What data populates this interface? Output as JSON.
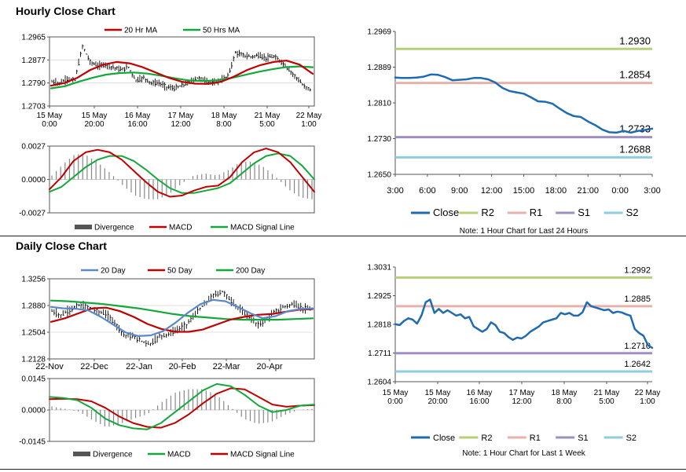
{
  "sections": {
    "hourly_title": "Hourly Close Chart",
    "daily_title": "Daily Close Chart"
  },
  "colors": {
    "close": "#1f6bb0",
    "r2": "#b6d07a",
    "r1": "#e7b2ae",
    "s1": "#9e8fc0",
    "s2": "#8ccde0",
    "ma_red": "#c00000",
    "ma_green": "#13a83b",
    "ma_blue": "#5a88c8",
    "bars": "#000000",
    "divergence": "#888888"
  },
  "chart_data": [
    {
      "id": "hourly-price",
      "type": "ohlc",
      "title": "Hourly Close Chart",
      "legend": [
        "20 Hr MA",
        "50 Hrs MA"
      ],
      "y_ticks": [
        "1.2965",
        "1.2877",
        "1.2790",
        "1.2703"
      ],
      "ylim": [
        1.2703,
        1.2965
      ],
      "x_ticks": [
        [
          "15 May",
          "0:00"
        ],
        [
          "15 May",
          "20:00"
        ],
        [
          "16 May",
          "16:00"
        ],
        [
          "17 May",
          "12:00"
        ],
        [
          "18 May",
          "8:00"
        ],
        [
          "21 May",
          "5:00"
        ],
        [
          "22 May",
          "1:00"
        ]
      ],
      "close": [
        1.2795,
        1.279,
        1.2805,
        1.28,
        1.293,
        1.287,
        1.2855,
        1.286,
        1.285,
        1.284,
        1.285,
        1.28,
        1.281,
        1.279,
        1.279,
        1.2775,
        1.277,
        1.278,
        1.2795,
        1.281,
        1.28,
        1.279,
        1.28,
        1.2815,
        1.2905,
        1.2895,
        1.289,
        1.2895,
        1.2885,
        1.289,
        1.287,
        1.284,
        1.281,
        1.2775,
        1.2765
      ],
      "ma20": [
        1.278,
        1.279,
        1.281,
        1.284,
        1.286,
        1.287,
        1.2865,
        1.285,
        1.283,
        1.281,
        1.2795,
        1.2788,
        1.2787,
        1.2795,
        1.2815,
        1.284,
        1.2858,
        1.287,
        1.2875,
        1.286,
        1.2825
      ],
      "ma50": [
        1.277,
        1.2778,
        1.2795,
        1.281,
        1.2822,
        1.2828,
        1.283,
        1.2826,
        1.2818,
        1.2808,
        1.28,
        1.2798,
        1.28,
        1.2808,
        1.282,
        1.2832,
        1.2842,
        1.285,
        1.2853,
        1.285
      ]
    },
    {
      "id": "hourly-macd",
      "type": "macd",
      "legend": [
        "Divergence",
        "MACD",
        "MACD Signal Line"
      ],
      "y_ticks": [
        "0.0027",
        "0.0000",
        "-0.0027"
      ],
      "ylim": [
        -0.0027,
        0.0027
      ],
      "macd": [
        -0.0008,
        0.0002,
        0.0015,
        0.0022,
        0.0024,
        0.0022,
        0.0016,
        0.0007,
        -0.0002,
        -0.001,
        -0.0014,
        -0.0013,
        -0.0009,
        -0.0006,
        -0.0005,
        0.0002,
        0.0014,
        0.0022,
        0.0025,
        0.0022,
        0.0014,
        0.0002,
        -0.001
      ],
      "signal": [
        -0.001,
        -0.0006,
        0.0002,
        0.001,
        0.0016,
        0.0019,
        0.0019,
        0.0015,
        0.0008,
        0.0,
        -0.0007,
        -0.0011,
        -0.0011,
        -0.0009,
        -0.0007,
        -0.0003,
        0.0005,
        0.0013,
        0.0019,
        0.0021,
        0.0019,
        0.0011,
        0.0
      ]
    },
    {
      "id": "hourly-levels",
      "type": "line",
      "series": [
        {
          "name": "Close",
          "values": [
            1.2866,
            1.2865,
            1.2865,
            1.2866,
            1.2868,
            1.2873,
            1.2872,
            1.2867,
            1.286,
            1.2861,
            1.2862,
            1.2865,
            1.2865,
            1.2862,
            1.2855,
            1.2843,
            1.2836,
            1.2833,
            1.283,
            1.2822,
            1.2813,
            1.2812,
            1.2808,
            1.2797,
            1.2787,
            1.278,
            1.2778,
            1.2768,
            1.276,
            1.275,
            1.2744,
            1.2743,
            1.2747,
            1.2743,
            1.2747,
            1.2749,
            1.2752
          ]
        }
      ],
      "levels": [
        {
          "name": "R2",
          "value": 1.293,
          "label": "1.2930"
        },
        {
          "name": "R1",
          "value": 1.2854,
          "label": "1.2854"
        },
        {
          "name": "S1",
          "value": 1.2733,
          "label": "1.2733"
        },
        {
          "name": "S2",
          "value": 1.2688,
          "label": "1.2688"
        }
      ],
      "y_ticks": [
        "1.2969",
        "1.2889",
        "1.2810",
        "1.2730",
        "1.2650"
      ],
      "ylim": [
        1.265,
        1.2969
      ],
      "x_ticks": [
        "3:00",
        "6:00",
        "9:00",
        "12:00",
        "15:00",
        "18:00",
        "21:00",
        "0:00",
        "3:00"
      ],
      "legend": [
        "Close",
        "R2",
        "R1",
        "S1",
        "S2"
      ],
      "note": "Note: 1 Hour Chart for Last 24 Hours"
    },
    {
      "id": "daily-price",
      "type": "ohlc",
      "title": "Daily Close Chart",
      "legend": [
        "20 Day",
        "50 Day",
        "200 Day"
      ],
      "y_ticks": [
        "1.3256",
        "1.2880",
        "1.2504",
        "1.2128"
      ],
      "ylim": [
        1.2128,
        1.3256
      ],
      "x_ticks": [
        "22-Nov",
        "22-Dec",
        "22-Jan",
        "20-Feb",
        "22-Mar",
        "20-Apr"
      ],
      "close": [
        1.28,
        1.274,
        1.282,
        1.288,
        1.286,
        1.28,
        1.276,
        1.264,
        1.247,
        1.244,
        1.238,
        1.234,
        1.245,
        1.248,
        1.254,
        1.261,
        1.276,
        1.29,
        1.302,
        1.308,
        1.294,
        1.282,
        1.272,
        1.26,
        1.27,
        1.28,
        1.287,
        1.29,
        1.284,
        1.282
      ],
      "ma20": [
        1.286,
        1.284,
        1.2835,
        1.281,
        1.272,
        1.261,
        1.25,
        1.245,
        1.246,
        1.252,
        1.264,
        1.278,
        1.29,
        1.296,
        1.294,
        1.286,
        1.277,
        1.27,
        1.273,
        1.28,
        1.283,
        1.284
      ],
      "ma50": [
        1.265,
        1.27,
        1.277,
        1.284,
        1.285,
        1.28,
        1.272,
        1.262,
        1.255,
        1.251,
        1.251,
        1.254,
        1.261,
        1.268,
        1.272,
        1.275,
        1.276,
        1.279,
        1.282,
        1.283
      ],
      "ma200": [
        1.295,
        1.294,
        1.292,
        1.29,
        1.287,
        1.284,
        1.28,
        1.276,
        1.273,
        1.271,
        1.269,
        1.268,
        1.268,
        1.268,
        1.269,
        1.27
      ]
    },
    {
      "id": "daily-macd",
      "type": "macd",
      "legend": [
        "Divergence",
        "MACD",
        "MACD Signal Line"
      ],
      "y_ticks": [
        "0.0145",
        "0.0000",
        "-0.0145"
      ],
      "ylim": [
        -0.0145,
        0.0145
      ],
      "macd": [
        0.006,
        0.0055,
        0.0045,
        0.001,
        -0.004,
        -0.007,
        -0.0085,
        -0.009,
        -0.006,
        -0.001,
        0.004,
        0.009,
        0.012,
        0.011,
        0.007,
        0.002,
        -0.001,
        0.0,
        0.002,
        0.0025
      ],
      "signal": [
        0.005,
        0.0052,
        0.005,
        0.004,
        0.001,
        -0.003,
        -0.006,
        -0.0078,
        -0.0082,
        -0.006,
        -0.002,
        0.003,
        0.0075,
        0.01,
        0.0095,
        0.006,
        0.0025,
        0.0015,
        0.002,
        0.0022
      ]
    },
    {
      "id": "daily-levels",
      "type": "line",
      "series": [
        {
          "name": "Close",
          "values": [
            1.2818,
            1.2815,
            1.283,
            1.284,
            1.2835,
            1.282,
            1.285,
            1.29,
            1.291,
            1.286,
            1.2875,
            1.286,
            1.287,
            1.286,
            1.285,
            1.2855,
            1.284,
            1.2845,
            1.281,
            1.28,
            1.279,
            1.28,
            1.2825,
            1.2815,
            1.279,
            1.2785,
            1.277,
            1.276,
            1.2768,
            1.2765,
            1.2775,
            1.279,
            1.28,
            1.281,
            1.2825,
            1.283,
            1.2835,
            1.284,
            1.286,
            1.2855,
            1.286,
            1.285,
            1.285,
            1.2862,
            1.29,
            1.2885,
            1.288,
            1.2875,
            1.287,
            1.2873,
            1.286,
            1.2865,
            1.2862,
            1.2855,
            1.285,
            1.28,
            1.2785,
            1.2775,
            1.274,
            1.273
          ]
        }
      ],
      "levels": [
        {
          "name": "R2",
          "value": 1.2992,
          "label": "1.2992"
        },
        {
          "name": "R1",
          "value": 1.2885,
          "label": "1.2885"
        },
        {
          "name": "S1",
          "value": 1.271,
          "label": "1.2710"
        },
        {
          "name": "S2",
          "value": 1.2642,
          "label": "1.2642"
        }
      ],
      "y_ticks": [
        "1.3031",
        "1.2925",
        "1.2818",
        "1.2711",
        "1.2604"
      ],
      "ylim": [
        1.2604,
        1.3031
      ],
      "x_ticks": [
        [
          "15 May",
          "0:00"
        ],
        [
          "15 May",
          "20:00"
        ],
        [
          "16 May",
          "16:00"
        ],
        [
          "17 May",
          "12:00"
        ],
        [
          "18 May",
          "8:00"
        ],
        [
          "21 May",
          "5:00"
        ],
        [
          "22 May",
          "1:00"
        ]
      ],
      "legend": [
        "Close",
        "R2",
        "R1",
        "S1",
        "S2"
      ],
      "note": "Note: 1 Hour Chart for Last 1 Week"
    }
  ]
}
